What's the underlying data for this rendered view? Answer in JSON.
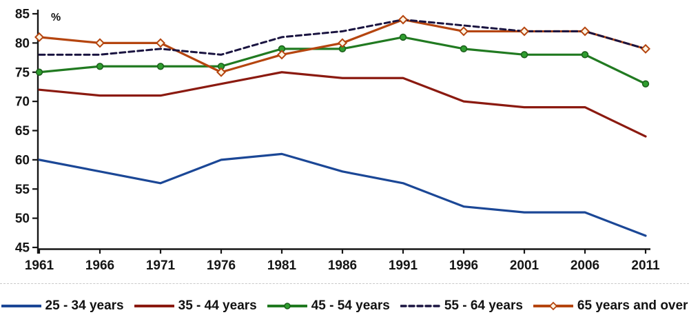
{
  "chart_data": {
    "type": "line",
    "title": "",
    "xlabel": "",
    "ylabel": "%",
    "x": [
      1961,
      1966,
      1971,
      1976,
      1981,
      1986,
      1991,
      1996,
      2001,
      2006,
      2011
    ],
    "ylim": [
      45,
      85
    ],
    "ytick_step": 5,
    "grid": false,
    "legend_position": "bottom",
    "axis_color": "#151515",
    "series": [
      {
        "name": "25 - 34 years",
        "values": [
          60,
          58,
          56,
          60,
          61,
          58,
          56,
          52,
          51,
          51,
          47
        ],
        "color": "#1b4796",
        "style": "solid",
        "marker": "none"
      },
      {
        "name": "35 - 44 years",
        "values": [
          72,
          71,
          71,
          73,
          75,
          74,
          74,
          70,
          69,
          69,
          64
        ],
        "color": "#8b1a10",
        "style": "solid",
        "marker": "none"
      },
      {
        "name": "45 - 54 years",
        "values": [
          75,
          76,
          76,
          76,
          79,
          79,
          81,
          79,
          78,
          78,
          73
        ],
        "color": "#217a21",
        "style": "solid",
        "marker": "dot",
        "marker_fill": "#2f9e2f",
        "marker_stroke": "#1c5f1c"
      },
      {
        "name": "55 - 64 years",
        "values": [
          78,
          78,
          79,
          78,
          81,
          82,
          84,
          83,
          82,
          82,
          79
        ],
        "color": "#1a1440",
        "style": "dashed",
        "marker": "none"
      },
      {
        "name": "65 years and over",
        "values": [
          81,
          80,
          80,
          75,
          78,
          80,
          84,
          82,
          82,
          82,
          79
        ],
        "color": "#b5450f",
        "style": "solid",
        "marker": "diamond",
        "marker_fill": "#fdf4e2",
        "marker_stroke": "#b5450f"
      }
    ]
  }
}
